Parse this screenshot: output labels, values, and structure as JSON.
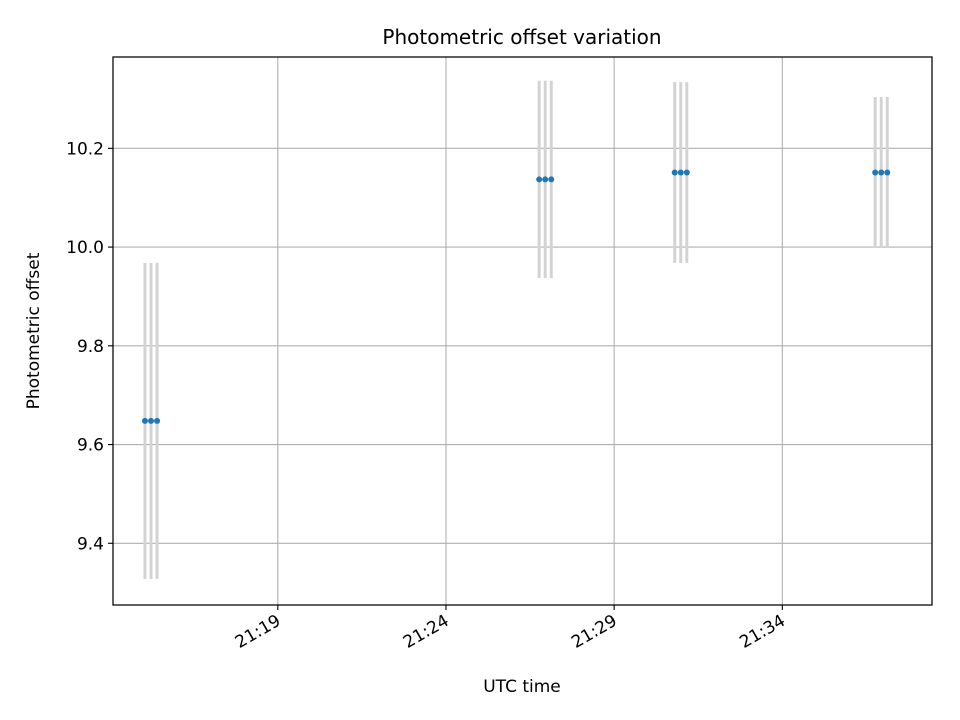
{
  "chart_data": {
    "type": "scatter",
    "title": "Photometric offset variation",
    "xlabel": "UTC time",
    "ylabel": "Photometric offset",
    "x_tick_labels": [
      "21:19",
      "21:24",
      "21:29",
      "21:34"
    ],
    "x_tick_minutes": [
      19,
      24,
      29,
      34
    ],
    "y_tick_labels": [
      "9.4",
      "9.6",
      "9.8",
      "10.0",
      "10.2"
    ],
    "y_tick_values": [
      9.4,
      9.6,
      9.8,
      10.0,
      10.2
    ],
    "xlim_minutes": [
      14.1,
      38.45
    ],
    "ylim": [
      9.275,
      10.385
    ],
    "grid": true,
    "legend": "none",
    "series": [
      {
        "x_minutes": [
          15.05,
          15.23,
          15.41,
          26.77,
          26.95,
          27.13,
          30.8,
          30.98,
          31.16,
          36.76,
          36.94,
          37.12
        ],
        "x_times": [
          "21:15:03",
          "21:15:14",
          "21:15:25",
          "21:26:46",
          "21:26:57",
          "21:27:08",
          "21:30:48",
          "21:30:59",
          "21:31:10",
          "21:36:46",
          "21:36:56",
          "21:37:07"
        ],
        "y": [
          9.648,
          9.648,
          9.648,
          10.137,
          10.137,
          10.137,
          10.151,
          10.151,
          10.151,
          10.151,
          10.151,
          10.151
        ],
        "err": [
          0.32,
          0.32,
          0.32,
          0.2,
          0.2,
          0.2,
          0.183,
          0.183,
          0.183,
          0.153,
          0.153,
          0.153
        ]
      }
    ],
    "colors": {
      "marker": "#1f77b4",
      "errorbar": "#d3d3d3",
      "grid": "#b0b0b0",
      "axes": "#000000"
    }
  }
}
